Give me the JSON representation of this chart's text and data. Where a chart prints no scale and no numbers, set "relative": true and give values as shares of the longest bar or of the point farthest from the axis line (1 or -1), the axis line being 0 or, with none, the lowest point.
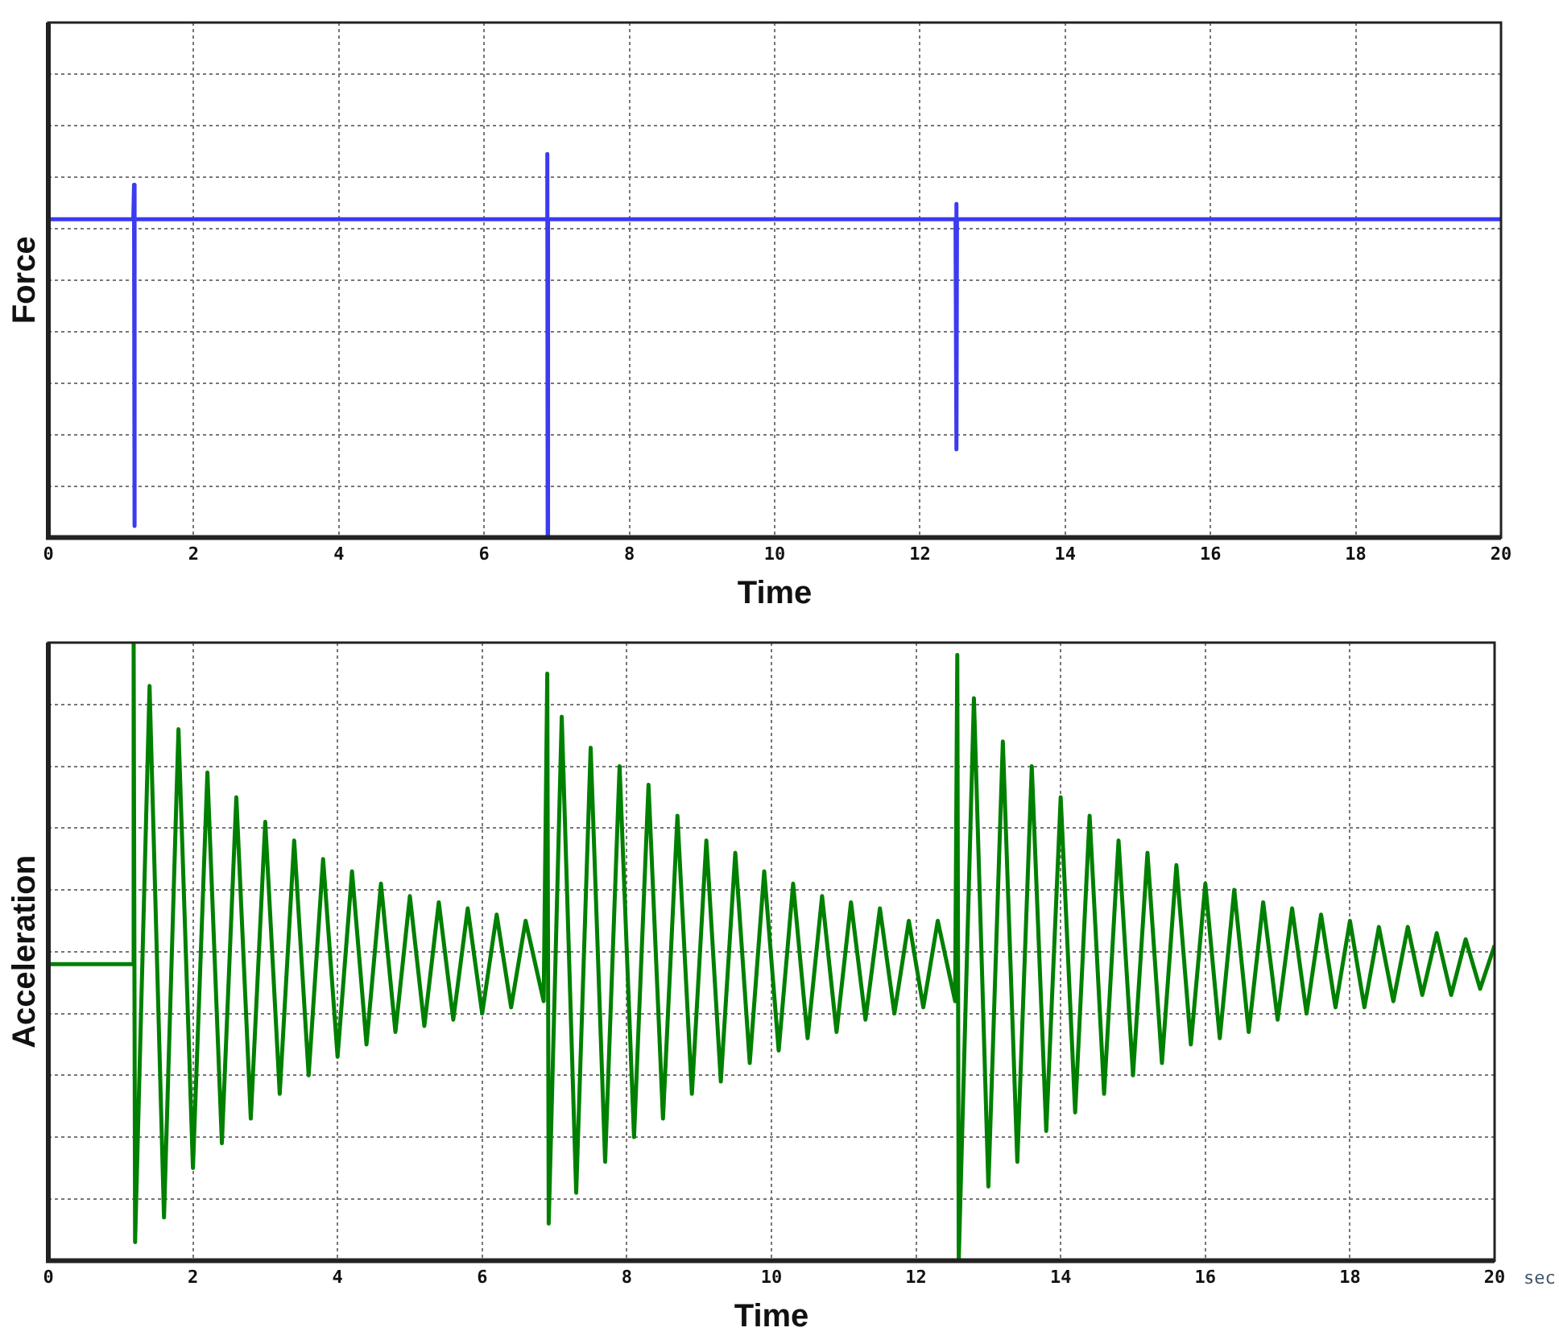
{
  "chart_data": [
    {
      "type": "line",
      "xlabel": "Time",
      "ylabel": "Force",
      "xlim": [
        0,
        20
      ],
      "xticks": [
        0,
        2,
        4,
        6,
        8,
        10,
        12,
        14,
        16,
        18,
        20
      ],
      "relative": true,
      "grid": true,
      "legend": false,
      "marker": "none",
      "tick_labels": "x",
      "x": [
        0,
        1.17,
        1.18,
        1.185,
        1.19,
        6.86,
        6.87,
        6.875,
        6.88,
        12.49,
        12.5,
        12.505,
        12.51,
        20
      ],
      "series": [
        {
          "color": "#3b3bf0",
          "values": [
            0.83,
            0.83,
            0.92,
            0.03,
            0.83,
            0.83,
            1,
            0,
            0.83,
            0.83,
            0.87,
            0.23,
            0.83,
            0.83
          ]
        }
      ]
    },
    {
      "type": "line",
      "xlabel": "Time",
      "ylabel": "Acceleration",
      "xlim": [
        0,
        20
      ],
      "xticks": [
        0,
        2,
        4,
        6,
        8,
        10,
        12,
        14,
        16,
        18,
        20
      ],
      "relative": true,
      "grid": true,
      "legend": false,
      "marker": "none",
      "tick_labels": "x",
      "annotations": [
        "sec"
      ],
      "x": [
        0,
        1.17,
        1.18,
        1.2,
        1.4,
        1.6,
        1.8,
        2.0,
        2.2,
        2.4,
        2.6,
        2.8,
        3.0,
        3.2,
        3.4,
        3.6,
        3.8,
        4.0,
        4.2,
        4.4,
        4.6,
        4.8,
        5.0,
        5.2,
        5.4,
        5.6,
        5.8,
        6.0,
        6.2,
        6.4,
        6.6,
        6.85,
        6.9,
        6.92,
        7.1,
        7.3,
        7.5,
        7.7,
        7.9,
        8.1,
        8.3,
        8.5,
        8.7,
        8.9,
        9.1,
        9.3,
        9.5,
        9.7,
        9.9,
        10.1,
        10.3,
        10.5,
        10.7,
        10.9,
        11.1,
        11.3,
        11.5,
        11.7,
        11.9,
        12.1,
        12.3,
        12.54,
        12.57,
        12.59,
        12.8,
        13.0,
        13.2,
        13.4,
        13.6,
        13.8,
        14.0,
        14.2,
        14.4,
        14.6,
        14.8,
        15.0,
        15.2,
        15.4,
        15.6,
        15.8,
        16.0,
        16.2,
        16.4,
        16.6,
        16.8,
        17.0,
        17.2,
        17.4,
        17.6,
        17.8,
        18.0,
        18.2,
        18.4,
        18.6,
        18.8,
        19.0,
        19.2,
        19.4,
        19.6,
        19.8,
        20.0
      ],
      "series": [
        {
          "color": "#008000",
          "values": [
            0.48,
            0.48,
            1.0,
            0.03,
            0.93,
            0.07,
            0.86,
            0.15,
            0.79,
            0.19,
            0.75,
            0.23,
            0.71,
            0.27,
            0.68,
            0.3,
            0.65,
            0.33,
            0.63,
            0.35,
            0.61,
            0.37,
            0.59,
            0.38,
            0.58,
            0.39,
            0.57,
            0.4,
            0.56,
            0.41,
            0.55,
            0.42,
            0.95,
            0.06,
            0.88,
            0.11,
            0.83,
            0.16,
            0.8,
            0.2,
            0.77,
            0.23,
            0.72,
            0.27,
            0.68,
            0.29,
            0.66,
            0.32,
            0.63,
            0.34,
            0.61,
            0.36,
            0.59,
            0.37,
            0.58,
            0.39,
            0.57,
            0.4,
            0.55,
            0.41,
            0.55,
            0.42,
            0.98,
            0,
            0.91,
            0.12,
            0.84,
            0.16,
            0.8,
            0.21,
            0.75,
            0.24,
            0.72,
            0.27,
            0.68,
            0.3,
            0.66,
            0.32,
            0.64,
            0.35,
            0.61,
            0.36,
            0.6,
            0.37,
            0.58,
            0.39,
            0.57,
            0.4,
            0.56,
            0.41,
            0.55,
            0.41,
            0.54,
            0.42,
            0.54,
            0.43,
            0.53,
            0.43,
            0.52,
            0.44,
            0.51
          ]
        }
      ]
    }
  ]
}
